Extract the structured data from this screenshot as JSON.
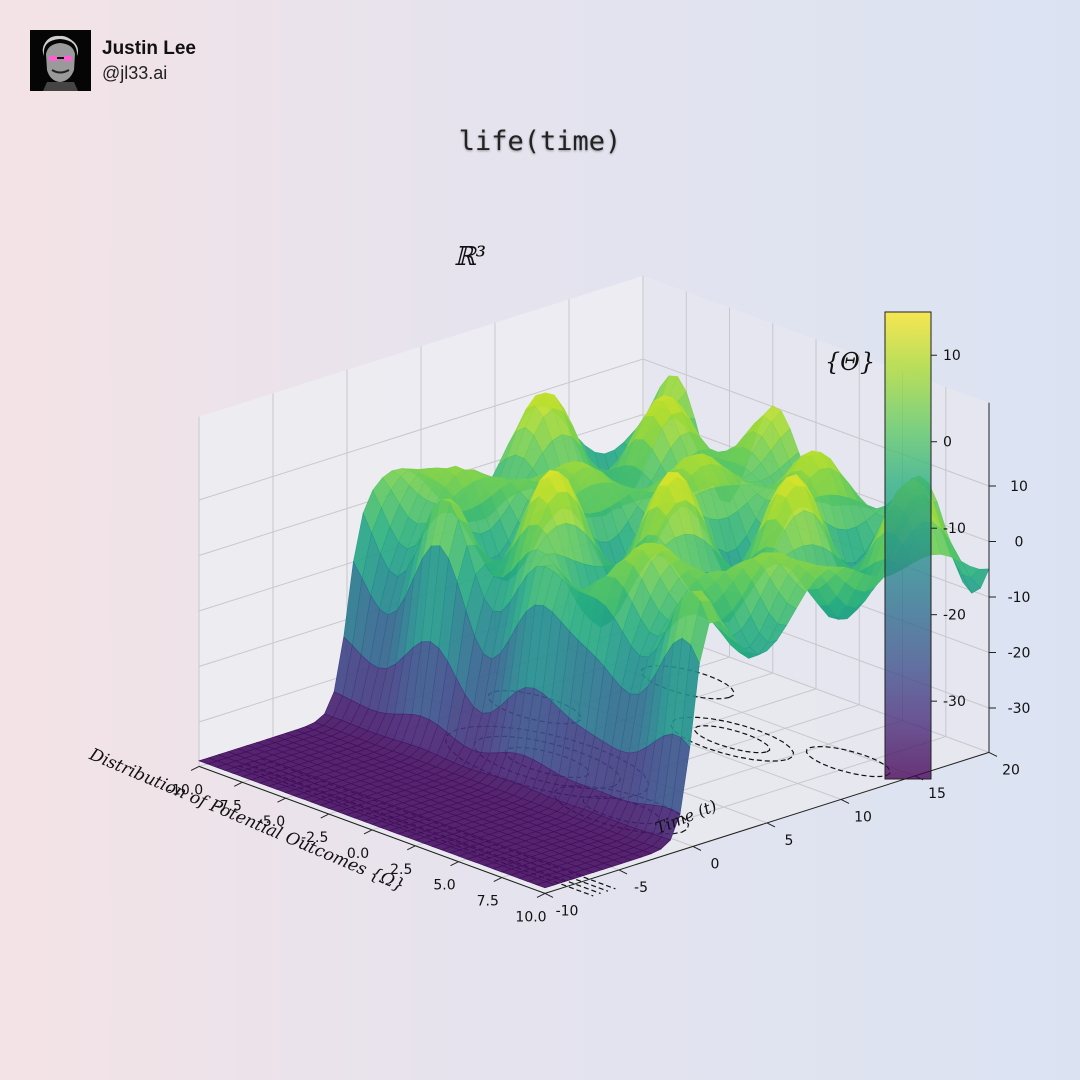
{
  "author": {
    "name": "Justin Lee",
    "handle": "@jl33.ai"
  },
  "title": "life(time)",
  "chart_data": {
    "type": "surface3d",
    "plot_title": "ℝ³",
    "xlabel": "Distribution of Potential Outcomes {Ω}",
    "ylabel": "Time (t)",
    "zlabel": "{Θ}",
    "xlim": [
      -10,
      10
    ],
    "ylim": [
      -10,
      20
    ],
    "zlim": [
      -38,
      17
    ],
    "x_ticks": [
      "-10.0",
      "-7.5",
      "-5.0",
      "-2.5",
      "0.0",
      "2.5",
      "5.0",
      "7.5",
      "10.0"
    ],
    "y_ticks": [
      "-10",
      "-5",
      "0",
      "5",
      "10",
      "15",
      "20"
    ],
    "z_ticks": [
      "10",
      "0",
      "-10",
      "-20",
      "-30"
    ],
    "colorbar_ticks": [
      "10",
      "0",
      "-10",
      "-20",
      "-30"
    ],
    "colorbar_range": [
      -39,
      15
    ],
    "colormap": "viridis",
    "surface_description": "z = sin(x)·cos(y)·amplitude plus a sigmoid step in y: near -37 for t < -2, rising to a wavy plateau around 0 for t > 2 with peaks up to ~15",
    "contours_on_floor": "dashed black",
    "grid": true
  }
}
